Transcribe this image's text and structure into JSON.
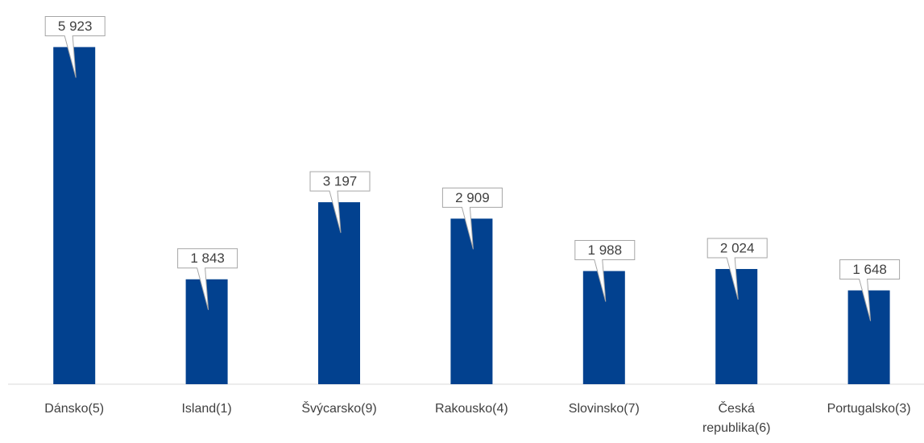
{
  "chart_data": {
    "type": "bar",
    "categories": [
      "Dánsko(5)",
      "Island(1)",
      "Švýcarsko(9)",
      "Rakousko(4)",
      "Slovinsko(7)",
      "Česká republika(6)",
      "Portugalsko(3)"
    ],
    "values": [
      5923,
      1843,
      3197,
      2909,
      1988,
      2024,
      1648
    ],
    "value_labels": [
      "5 923",
      "1 843",
      "3 197",
      "2 909",
      "1 988",
      "2 024",
      "1 648"
    ],
    "color": "#02418f",
    "ylim": [
      0,
      6000
    ]
  }
}
